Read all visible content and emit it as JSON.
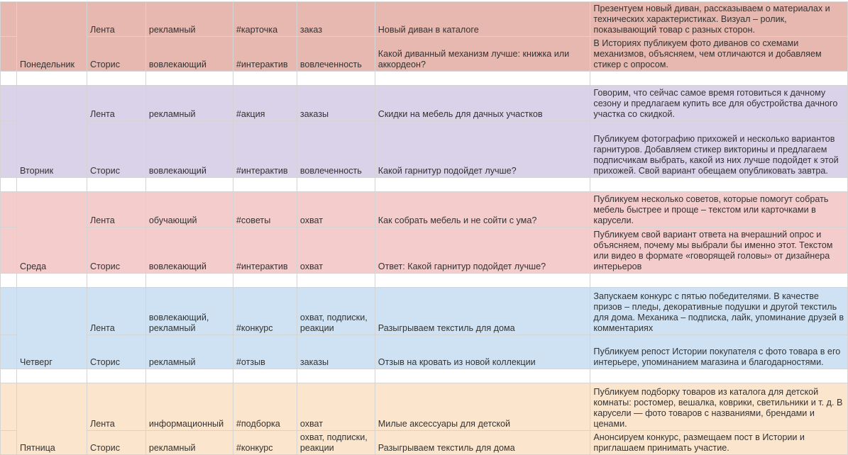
{
  "sheet": {
    "days": [
      {
        "day": "Понедельник",
        "color": "#e6b8af",
        "rows": [
          {
            "format": "Лента",
            "type": "рекламный",
            "tag": "#карточка",
            "goal": "заказ",
            "topic": "Новый диван в каталоге",
            "description": "Презентуем новый диван, рассказываем о материалах и технических характеристиках. Визуал – ролик, показывающий товар с разных сторон."
          },
          {
            "format": "Сторис",
            "type": "вовлекающий",
            "tag": "#интерактив",
            "goal": "вовлеченность",
            "topic": "Какой диванный механизм лучше: книжка или аккордеон?",
            "description": "В Историях публикуем фото диванов со схемами механизмов, объясняем, чем отличаются и добавляем стикер с опросом."
          }
        ]
      },
      {
        "day": "Вторник",
        "color": "#d9d2e9",
        "rows": [
          {
            "format": "Лента",
            "type": "рекламный",
            "tag": "#акция",
            "goal": "заказы",
            "topic": "Скидки на мебель для дачных участков",
            "description": "Говорим, что сейчас самое время готовиться к дачному сезону и предлагаем купить все для обустройства дачного участка со скидкой."
          },
          {
            "format": "Сторис",
            "type": "вовлекающий",
            "tag": "#интерактив",
            "goal": "вовлеченность",
            "topic": "Какой гарнитур подойдет лучше?",
            "description": "Публикуем фотографию прихожей и несколько вариантов гарнитуров. Добавляем стикер викторины и предлагаем подписчикам выбрать, какой из них лучше подойдет к этой прихожей. Свой вариант обещаем опубликовать завтра."
          }
        ]
      },
      {
        "day": "Среда",
        "color": "#f4cccc",
        "rows": [
          {
            "format": "Лента",
            "type": "обучающий",
            "tag": "#советы",
            "goal": "охват",
            "topic": "Как собрать мебель и не сойти с ума?",
            "description": "Публикуем несколько советов, которые помогут собрать мебель быстрее и проще – текстом или карточками в карусели."
          },
          {
            "format": "Сторис",
            "type": "вовлекающий",
            "tag": "#интерактив",
            "goal": "охват",
            "topic": "Ответ: Какой гарнитур подойдет лучше?",
            "description": "Публикуем свой вариант ответа на вчерашний опрос и объясняем, почему мы выбрали бы именно этот. Текстом или видео в формате «говорящей головы» от дизайнера интерьеров"
          }
        ]
      },
      {
        "day": "Четверг",
        "color": "#cfe2f3",
        "rows": [
          {
            "format": "Лента",
            "type": "вовлекающий, рекламный",
            "tag": "#конкурс",
            "goal": "охват, подписки, реакции",
            "topic": "Разыгрываем текстиль для дома",
            "description": "Запускаем конкурс с пятью победителями. В качестве призов – пледы, декоративные подушки и другой текстиль для дома. Механика – подписка, лайк, упоминание друзей в комментариях"
          },
          {
            "format": "Сторис",
            "type": "рекламный",
            "tag": "#отзыв",
            "goal": "заказы",
            "topic": "Отзыв на кровать из новой коллекции",
            "description": "Публикуем репост Истории покупателя с фото товара в его интерьере, упоминанием магазина и благодарностями."
          }
        ]
      },
      {
        "day": "Пятница",
        "color": "#fce5cd",
        "rows": [
          {
            "format": "Лента",
            "type": "информационный",
            "tag": "#подборка",
            "goal": "охват",
            "topic": "Милые аксессуары для детской",
            "description": "Публикуем подборку товаров из каталога для детской комнаты: ростомер, вешалка, коврики, светильники и т. д. В карусели — фото товаров с названиями, брендами и ценами."
          },
          {
            "format": "Сторис",
            "type": "рекламный",
            "tag": "#конкурс",
            "goal": "охват, подписки, реакции",
            "topic": "Разыгрываем текстиль для дома",
            "description": "Анонсируем конкурс, размещаем пост в Истории и приглашаем принимать участие."
          }
        ]
      }
    ]
  }
}
